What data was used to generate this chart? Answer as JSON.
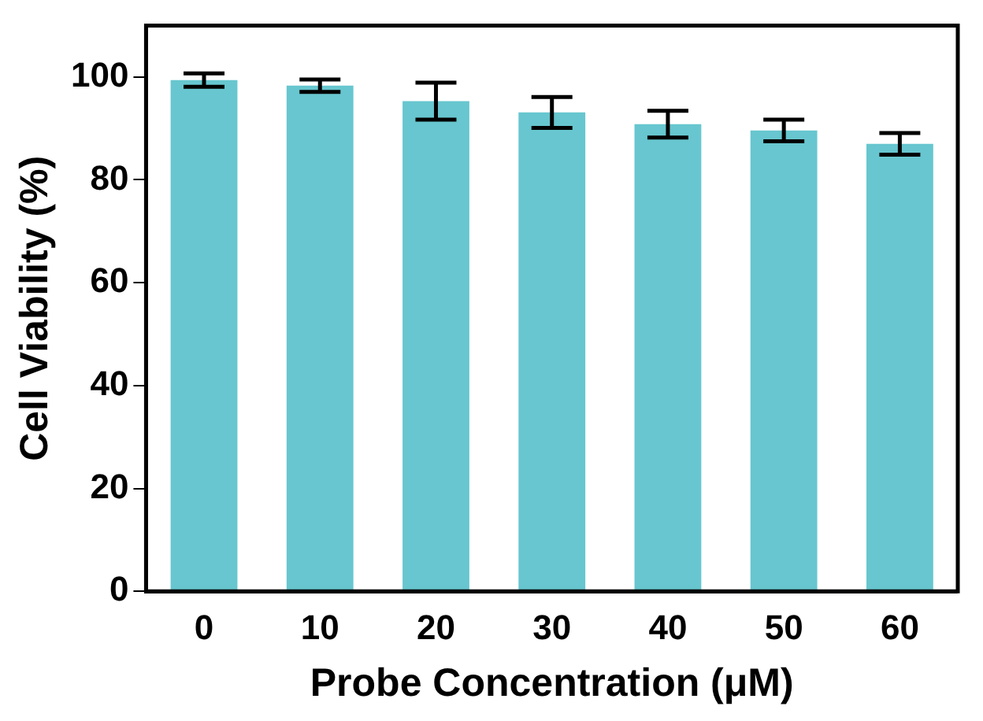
{
  "chart_data": {
    "type": "bar",
    "xlabel": "Probe Concentration (μM)",
    "ylabel": "Cell Viability (%)",
    "categories": [
      "0",
      "10",
      "20",
      "30",
      "40",
      "50",
      "60"
    ],
    "values": [
      99.4,
      98.3,
      95.3,
      93.1,
      90.8,
      89.6,
      87.0
    ],
    "errors": [
      1.3,
      1.2,
      3.6,
      3.0,
      2.6,
      2.1,
      2.1
    ],
    "color": "#67c6cf",
    "ylim": [
      0,
      110
    ],
    "yticks": [
      0,
      20,
      40,
      60,
      80,
      100
    ],
    "grid": false,
    "legend": false
  }
}
